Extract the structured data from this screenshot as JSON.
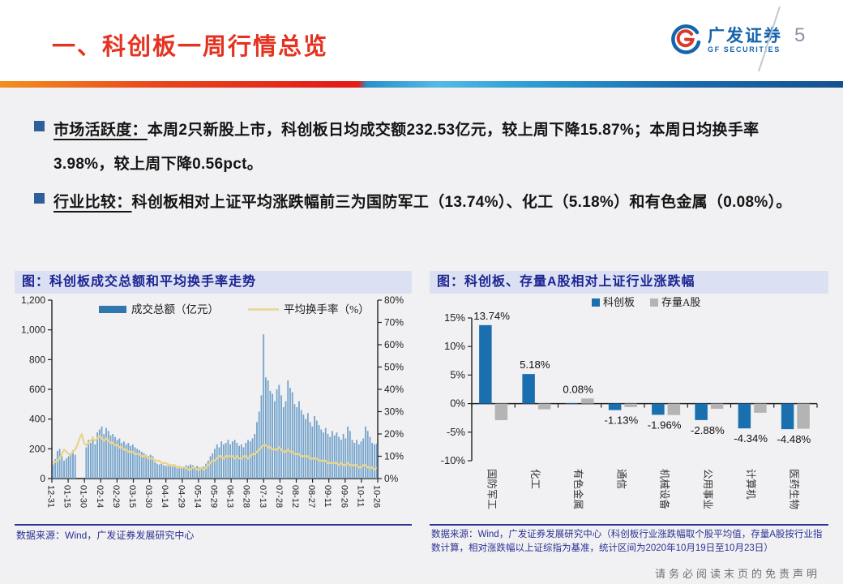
{
  "header": {
    "title": "一、科创板一周行情总览",
    "logo_cn": "广发证券",
    "logo_en": "GF SECURITIES",
    "page_number": "5"
  },
  "bullets": [
    {
      "lead": "市场活跃度：",
      "text": "本周2只新股上市，科创板日均成交额232.53亿元，较上周下降15.87%；本周日均换手率3.98%，较上周下降0.56pct。"
    },
    {
      "lead": "行业比较：",
      "text": "科创板相对上证平均涨跌幅前三为国防军工（13.74%）、化工（5.18%）和有色金属（0.08%）。"
    }
  ],
  "panels": [
    {
      "title": "图：科创板成交总额和平均换手率走势",
      "source": "数据来源：Wind，广发证券发展研究中心"
    },
    {
      "title": "图：科创板、存量A股相对上证行业涨跌幅",
      "source": "数据来源：Wind，广发证券发展研究中心（科创板行业涨跌幅取个股平均值，存量A股按行业指数计算，相对涨跌幅以上证综指为基准，统计区间为2020年10月19日至10月23日）"
    }
  ],
  "footer": "请务必阅读末页的免责声明",
  "colors": {
    "title_red": "#e43320",
    "navy": "#1d2492",
    "bullet_square": "#2e5f9b",
    "bar_blue_light": "#74a3cb",
    "line_yellow": "#e9d58e",
    "bar_blue_dark": "#1a6fae",
    "bar_gray": "#b4b4b4"
  },
  "chart_data": [
    {
      "type": "bar",
      "title": "科创板成交总额和平均换手率走势",
      "legend_position": "top",
      "x_labels": [
        "12-31",
        "01-15",
        "01-30",
        "02-14",
        "02-29",
        "03-15",
        "03-30",
        "04-14",
        "04-29",
        "05-14",
        "05-29",
        "06-13",
        "06-28",
        "07-13",
        "07-28",
        "08-12",
        "08-27",
        "09-11",
        "09-26",
        "10-11",
        "10-26"
      ],
      "left_axis": {
        "min": 0,
        "max": 1200,
        "step": 200,
        "tick_labels": [
          "0",
          "200",
          "400",
          "600",
          "800",
          "1,000",
          "1,200"
        ]
      },
      "right_axis": {
        "min": 0,
        "max": 80,
        "step": 10,
        "tick_labels": [
          "0%",
          "10%",
          "20%",
          "30%",
          "40%",
          "50%",
          "60%",
          "70%",
          "80%"
        ]
      },
      "series": [
        {
          "name": "成交总额（亿元）",
          "type": "bar",
          "axis": "left",
          "color": "#74a3cb",
          "swatch": "#3077ad",
          "values": [
            95,
            130,
            185,
            200,
            155,
            120,
            135,
            150,
            170,
            190,
            160,
            0,
            0,
            0,
            0,
            210,
            260,
            240,
            280,
            230,
            310,
            330,
            350,
            300,
            340,
            320,
            290,
            300,
            280,
            260,
            270,
            240,
            250,
            230,
            240,
            220,
            230,
            210,
            200,
            190,
            180,
            170,
            160,
            150,
            160,
            150,
            110,
            100,
            95,
            105,
            90,
            85,
            100,
            95,
            80,
            90,
            75,
            85,
            70,
            80,
            90,
            85,
            95,
            90,
            80,
            85,
            75,
            70,
            80,
            100,
            120,
            150,
            170,
            200,
            230,
            210,
            250,
            230,
            240,
            260,
            230,
            250,
            260,
            240,
            220,
            230,
            210,
            240,
            260,
            250,
            270,
            300,
            380,
            450,
            560,
            970,
            680,
            660,
            590,
            570,
            520,
            600,
            630,
            560,
            480,
            520,
            660,
            610,
            580,
            500,
            480,
            520,
            460,
            430,
            400,
            440,
            380,
            350,
            420,
            390,
            360,
            330,
            310,
            340,
            300,
            280,
            320,
            290,
            310,
            280,
            260,
            300,
            270,
            350,
            320,
            260,
            240,
            260,
            230,
            250,
            270,
            350,
            320,
            280,
            240,
            230,
            235
          ]
        },
        {
          "name": "平均换手率（%）",
          "type": "line",
          "axis": "right",
          "color": "#e9d58e",
          "values": [
            7,
            7.5,
            8,
            9,
            11,
            13,
            12,
            11,
            11,
            12,
            13,
            15,
            18,
            20,
            16,
            15,
            16,
            17,
            18,
            17,
            18,
            19,
            18,
            17,
            18,
            17,
            16,
            16,
            15,
            15,
            14,
            14,
            13,
            13,
            12,
            12,
            12,
            11,
            11,
            11,
            10,
            10,
            10,
            9,
            9,
            9,
            8,
            8,
            8,
            7,
            7,
            7,
            6,
            6,
            6,
            6,
            5,
            5,
            5,
            5,
            5,
            4,
            4,
            5,
            5,
            4,
            4,
            5,
            4,
            5,
            6,
            7,
            8,
            8,
            9,
            10,
            10,
            9,
            10,
            10,
            10,
            10,
            9,
            10,
            9,
            9,
            10,
            10,
            9,
            10,
            11,
            11,
            12,
            13,
            14,
            15,
            15,
            14,
            14,
            13,
            13,
            13,
            14,
            13,
            12,
            12,
            13,
            12,
            12,
            11,
            11,
            11,
            10,
            10,
            10,
            10,
            9,
            9,
            9,
            9,
            8,
            8,
            8,
            8,
            7,
            7,
            7,
            7,
            7,
            6,
            7,
            6,
            6,
            7,
            6,
            6,
            6,
            6,
            5,
            5,
            6,
            6,
            5,
            5,
            5,
            4,
            5
          ]
        }
      ]
    },
    {
      "type": "bar",
      "title": "科创板、存量A股相对上证行业涨跌幅",
      "legend_position": "top",
      "categories": [
        "国防军工",
        "化工",
        "有色金属",
        "通信",
        "机械设备",
        "公用事业",
        "计算机",
        "医药生物"
      ],
      "y_axis": {
        "min": -10,
        "max": 15,
        "step": 5,
        "tick_labels": [
          "-10%",
          "-5%",
          "0%",
          "5%",
          "10%",
          "15%"
        ]
      },
      "series": [
        {
          "name": "科创板",
          "color": "#1a6fae",
          "values": [
            13.74,
            5.18,
            0.08,
            -1.13,
            -1.96,
            -2.88,
            -4.34,
            -4.48
          ]
        },
        {
          "name": "存量A股",
          "color": "#b4b4b4",
          "values": [
            -2.9,
            -1.0,
            0.9,
            -0.6,
            -2.0,
            -0.9,
            -1.6,
            -4.4
          ]
        }
      ],
      "data_labels": [
        "13.74%",
        "5.18%",
        "0.08%",
        "-1.13%",
        "-1.96%",
        "-2.88%",
        "-4.34%",
        "-4.48%"
      ]
    }
  ]
}
